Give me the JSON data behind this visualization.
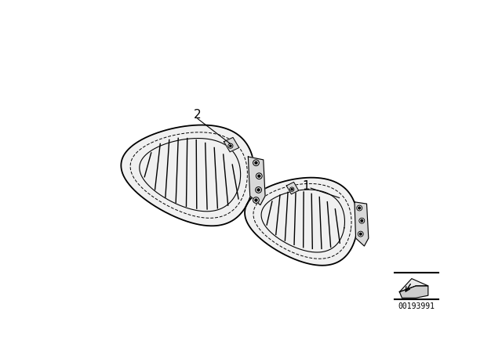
{
  "background_color": "#ffffff",
  "label1": "1",
  "label2": "2",
  "part_number": "00193991",
  "line_color": "#000000",
  "grille_fill": "#f0f0f0",
  "bracket_fill": "#d8d8d8"
}
